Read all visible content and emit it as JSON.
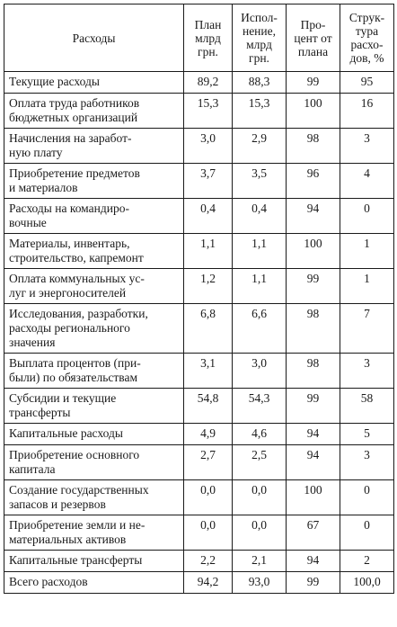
{
  "headers": [
    "Расходы",
    "План\nмлрд\nгрн.",
    "Испол-\nнение,\nмлрд\nгрн.",
    "Про-\nцент от\nплана",
    "Струк-\nтура\nрасхо-\nдов, %"
  ],
  "rows": [
    {
      "name": "Текущие расходы",
      "plan": "89,2",
      "exec": "88,3",
      "pct": "99",
      "struct": "95"
    },
    {
      "name": "Оплата труда работников\nбюджетных организаций",
      "plan": "15,3",
      "exec": "15,3",
      "pct": "100",
      "struct": "16"
    },
    {
      "name": "Начисления на заработ-\nную плату",
      "plan": "3,0",
      "exec": "2,9",
      "pct": "98",
      "struct": "3"
    },
    {
      "name": "Приобретение предметов\nи материалов",
      "plan": "3,7",
      "exec": "3,5",
      "pct": "96",
      "struct": "4"
    },
    {
      "name": "Расходы на командиро-\nвочные",
      "plan": "0,4",
      "exec": "0,4",
      "pct": "94",
      "struct": "0"
    },
    {
      "name": "Материалы, инвентарь,\nстроительство, капремонт",
      "plan": "1,1",
      "exec": "1,1",
      "pct": "100",
      "struct": "1"
    },
    {
      "name": "Оплата коммунальных ус-\nлуг и энергоносителей",
      "plan": "1,2",
      "exec": "1,1",
      "pct": "99",
      "struct": "1"
    },
    {
      "name": "Исследования, разработки,\nрасходы регионального\nзначения",
      "plan": "6,8",
      "exec": "6,6",
      "pct": "98",
      "struct": "7"
    },
    {
      "name": "Выплата процентов (при-\nбыли) по обязательствам",
      "plan": "3,1",
      "exec": "3,0",
      "pct": "98",
      "struct": "3"
    },
    {
      "name": "Субсидии и текущие\nтрансферты",
      "plan": "54,8",
      "exec": "54,3",
      "pct": "99",
      "struct": "58"
    },
    {
      "name": "Капитальные расходы",
      "plan": "4,9",
      "exec": "4,6",
      "pct": "94",
      "struct": "5"
    },
    {
      "name": "Приобретение основного\nкапитала",
      "plan": "2,7",
      "exec": "2,5",
      "pct": "94",
      "struct": "3"
    },
    {
      "name": "Создание государственных\nзапасов и резервов",
      "plan": "0,0",
      "exec": "0,0",
      "pct": "100",
      "struct": "0"
    },
    {
      "name": "Приобретение земли и не-\nматериальных активов",
      "plan": "0,0",
      "exec": "0,0",
      "pct": "67",
      "struct": "0"
    },
    {
      "name": "Капитальные трансферты",
      "plan": "2,2",
      "exec": "2,1",
      "pct": "94",
      "struct": "2"
    },
    {
      "name": "Всего расходов",
      "plan": "94,2",
      "exec": "93,0",
      "pct": "99",
      "struct": "100,0"
    }
  ]
}
